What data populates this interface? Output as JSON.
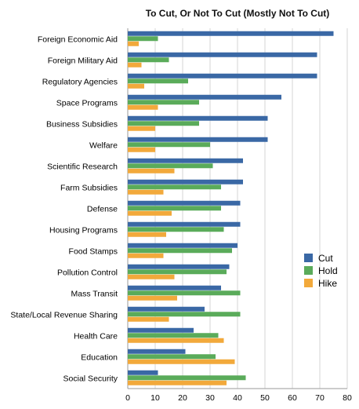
{
  "chart_data": {
    "type": "bar",
    "orientation": "horizontal",
    "title": "To Cut, Or Not To Cut (Mostly Not To Cut)",
    "categories": [
      "Foreign Economic Aid",
      "Foreign Military Aid",
      "Regulatory Agencies",
      "Space Programs",
      "Business Subsidies",
      "Welfare",
      "Scientific Research",
      "Farm Subsidies",
      "Defense",
      "Housing Programs",
      "Food Stamps",
      "Pollution Control",
      "Mass Transit",
      "State/Local Revenue Sharing",
      "Health Care",
      "Education",
      "Social Security"
    ],
    "series": [
      {
        "name": "Cut",
        "color": "#3a68a5",
        "values": [
          75,
          69,
          69,
          56,
          51,
          51,
          42,
          42,
          41,
          41,
          40,
          37,
          34,
          28,
          24,
          21,
          11
        ]
      },
      {
        "name": "Hold",
        "color": "#5aab5a",
        "values": [
          11,
          15,
          22,
          26,
          26,
          30,
          31,
          34,
          34,
          35,
          38,
          36,
          41,
          41,
          33,
          32,
          43
        ]
      },
      {
        "name": "Hike",
        "color": "#f2a93b",
        "values": [
          4,
          5,
          6,
          11,
          10,
          10,
          17,
          13,
          16,
          14,
          13,
          17,
          18,
          15,
          35,
          39,
          36
        ]
      }
    ],
    "x_ticks": [
      0,
      10,
      20,
      30,
      40,
      50,
      60,
      70,
      80
    ],
    "xlim": [
      0,
      80
    ],
    "grid": true,
    "legend_position": "right"
  }
}
